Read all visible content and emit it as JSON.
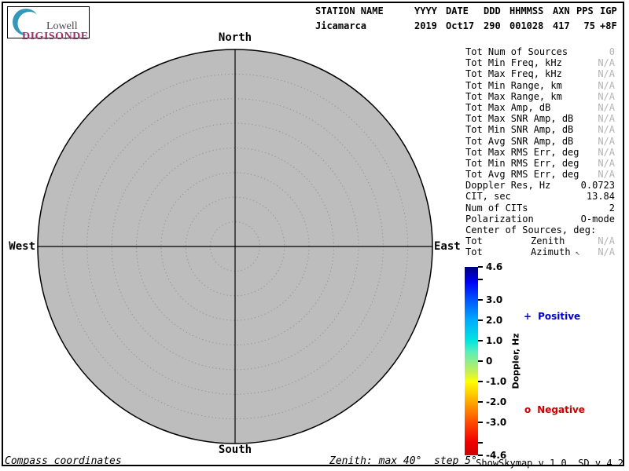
{
  "logo": {
    "brand_top": "Lowell",
    "brand_bottom": "DIGISONDE",
    "crescent_color": "#3598bb",
    "brand_top_color": "#4b4550",
    "brand_bottom_color": "#9e2f68"
  },
  "header": {
    "columns": [
      {
        "key": "station",
        "label": "STATION NAME",
        "value": "Jicamarca"
      },
      {
        "key": "yyyy",
        "label": "YYYY",
        "value": "2019"
      },
      {
        "key": "date",
        "label": "DATE",
        "value": "Oct17"
      },
      {
        "key": "ddd",
        "label": "DDD",
        "value": "290"
      },
      {
        "key": "hhmmss",
        "label": "HHMMSS",
        "value": "001028"
      },
      {
        "key": "axn",
        "label": "AXN",
        "value": "417"
      },
      {
        "key": "pps",
        "label": "PPS",
        "value": "75"
      },
      {
        "key": "igp",
        "label": "IGP",
        "value": "+8F"
      }
    ]
  },
  "skymap": {
    "compass": {
      "north": "North",
      "south": "South",
      "west": "West",
      "east": "East"
    },
    "max_zenith_deg": 40,
    "ring_step_deg": 5,
    "num_rings": 8,
    "fill": "#bdbdbd"
  },
  "stats": {
    "rows": [
      {
        "label": "Tot Num of Sources",
        "mid": "",
        "value": "0",
        "dim": true
      },
      {
        "label": "Tot Min Freq, kHz",
        "mid": "",
        "value": "N/A",
        "dim": true
      },
      {
        "label": "Tot Max Freq, kHz",
        "mid": "",
        "value": "N/A",
        "dim": true
      },
      {
        "label": "Tot Min Range, km",
        "mid": "",
        "value": "N/A",
        "dim": true
      },
      {
        "label": "Tot Max Range, km",
        "mid": "",
        "value": "N/A",
        "dim": true
      },
      {
        "label": "Tot Max Amp, dB",
        "mid": "",
        "value": "N/A",
        "dim": true
      },
      {
        "label": "Tot Max SNR Amp, dB",
        "mid": "",
        "value": "N/A",
        "dim": true
      },
      {
        "label": "Tot Min SNR Amp, dB",
        "mid": "",
        "value": "N/A",
        "dim": true
      },
      {
        "label": "Tot Avg SNR Amp, dB",
        "mid": "",
        "value": "N/A",
        "dim": true
      },
      {
        "label": "Tot Max RMS Err, deg",
        "mid": "",
        "value": "N/A",
        "dim": true
      },
      {
        "label": "Tot Min RMS Err, deg",
        "mid": "",
        "value": "N/A",
        "dim": true
      },
      {
        "label": "Tot Avg RMS Err, deg",
        "mid": "",
        "value": "N/A",
        "dim": true
      },
      {
        "label": "Doppler Res, Hz",
        "mid": "",
        "value": "0.0723",
        "dim": false
      },
      {
        "label": "CIT, sec",
        "mid": "",
        "value": "13.84",
        "dim": false
      },
      {
        "label": "Num of CITs",
        "mid": "",
        "value": "2",
        "dim": false
      },
      {
        "label": "Polarization",
        "mid": "",
        "value": "O-mode",
        "dim": false
      },
      {
        "label": "Center of Sources, deg:",
        "mid": "",
        "value": "",
        "dim": false
      },
      {
        "label": "Tot",
        "mid": "Zenith",
        "value": "N/A",
        "dim": true
      },
      {
        "label": "Tot",
        "mid": "Azimuth",
        "arrow": "↖",
        "value": "N/A",
        "dim": true
      }
    ]
  },
  "colorbar": {
    "axis_label": "Doppler, Hz",
    "max": 4.6,
    "min": -4.6,
    "ticks": [
      {
        "v": 4.6,
        "t": "4.6"
      },
      {
        "v": 4.0,
        "t": ""
      },
      {
        "v": 3.0,
        "t": "3.0"
      },
      {
        "v": 2.0,
        "t": "2.0"
      },
      {
        "v": 1.0,
        "t": "1.0"
      },
      {
        "v": 0,
        "t": "0"
      },
      {
        "v": -1.0,
        "t": "-1.0"
      },
      {
        "v": -2.0,
        "t": "-2.0"
      },
      {
        "v": -3.0,
        "t": "-3.0"
      },
      {
        "v": -4.0,
        "t": ""
      },
      {
        "v": -4.6,
        "t": "-4.6"
      }
    ],
    "gradient_stops": [
      {
        "p": 0,
        "c": "#000080"
      },
      {
        "p": 8,
        "c": "#0000f5"
      },
      {
        "p": 17,
        "c": "#0050ff"
      },
      {
        "p": 28,
        "c": "#00aaff"
      },
      {
        "p": 39,
        "c": "#00e5e0"
      },
      {
        "p": 45,
        "c": "#58eebb"
      },
      {
        "p": 50,
        "c": "#8dee8d"
      },
      {
        "p": 56,
        "c": "#c8f050"
      },
      {
        "p": 61,
        "c": "#ffff00"
      },
      {
        "p": 72,
        "c": "#ffa500"
      },
      {
        "p": 83,
        "c": "#ff4800"
      },
      {
        "p": 93,
        "c": "#f00000"
      },
      {
        "p": 100,
        "c": "#cd0000"
      }
    ]
  },
  "legend": {
    "positive": {
      "symbol": "+",
      "label": "Positive",
      "color": "#0000d0"
    },
    "negative": {
      "symbol": "o",
      "label": "Negative",
      "color": "#cc0000"
    }
  },
  "footer": {
    "left": "Compass coordinates",
    "center": "Zenith: max 40°  step 5°",
    "right": "ShowSkymap v 1.0  SD v 4.2"
  }
}
